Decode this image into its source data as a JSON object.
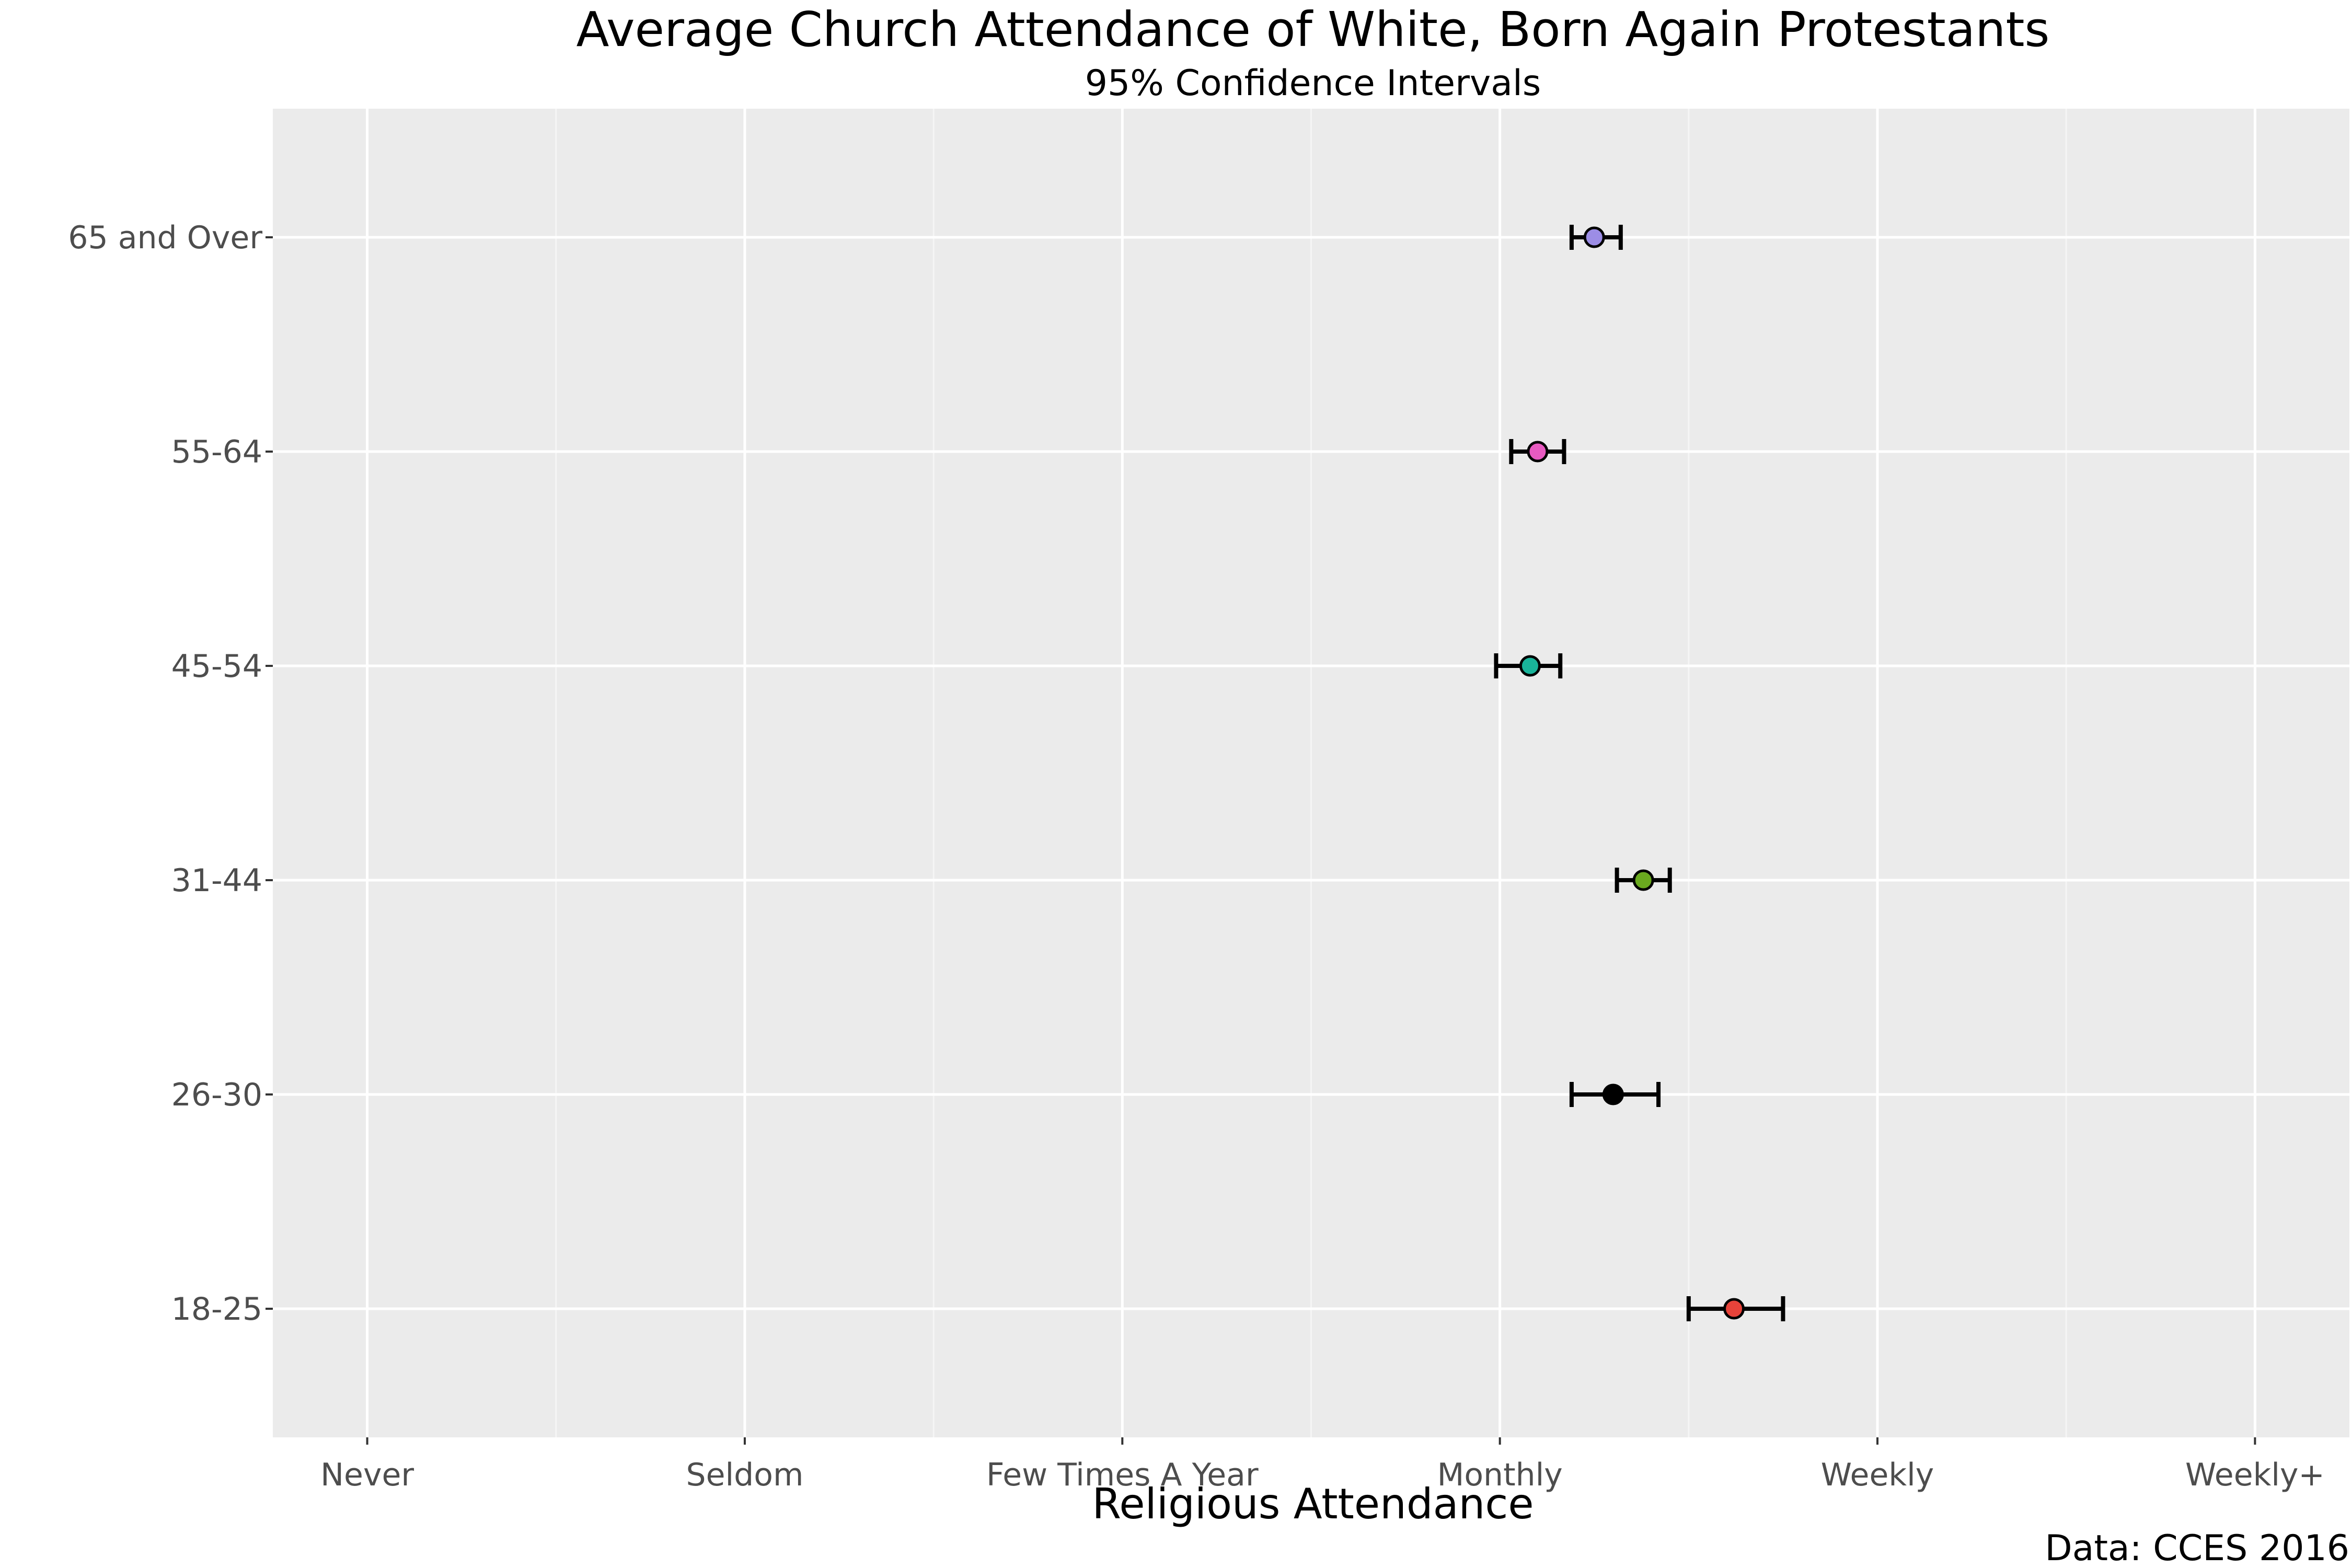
{
  "chart_data": {
    "type": "scatter",
    "title": "Average Church Attendance of White, Born Again Protestants",
    "subtitle": "95% Confidence Intervals",
    "xlabel": "Religious Attendance",
    "ylabel": "",
    "caption": "Data: CCES 2016",
    "x_ticks": [
      {
        "value": 1,
        "label": "Never"
      },
      {
        "value": 2,
        "label": "Seldom"
      },
      {
        "value": 3,
        "label": "Few Times A Year"
      },
      {
        "value": 4,
        "label": "Monthly"
      },
      {
        "value": 5,
        "label": "Weekly"
      },
      {
        "value": 6,
        "label": "Weekly+"
      }
    ],
    "xlim": [
      0.75,
      6.25
    ],
    "categories": [
      "18-25",
      "26-30",
      "31-44",
      "45-54",
      "55-64",
      "65 and Over"
    ],
    "grid": true,
    "legend": "none",
    "points": [
      {
        "category": "18-25",
        "mean": 4.62,
        "lower": 4.5,
        "upper": 4.75,
        "color": "#e8433a"
      },
      {
        "category": "26-30",
        "mean": 4.3,
        "lower": 4.19,
        "upper": 4.42,
        "color": "#000000"
      },
      {
        "category": "31-44",
        "mean": 4.38,
        "lower": 4.31,
        "upper": 4.45,
        "color": "#6aaa1f"
      },
      {
        "category": "45-54",
        "mean": 4.08,
        "lower": 3.99,
        "upper": 4.16,
        "color": "#19b49a"
      },
      {
        "category": "55-64",
        "mean": 4.1,
        "lower": 4.03,
        "upper": 4.17,
        "color": "#e85ac1"
      },
      {
        "category": "65 and Over",
        "mean": 4.25,
        "lower": 4.19,
        "upper": 4.32,
        "color": "#9c8de6"
      }
    ],
    "colors": {
      "panel_background": "#ebebeb",
      "grid_major": "#ffffff",
      "grid_minor": "#f5f5f5",
      "error_bar": "#000000"
    }
  }
}
